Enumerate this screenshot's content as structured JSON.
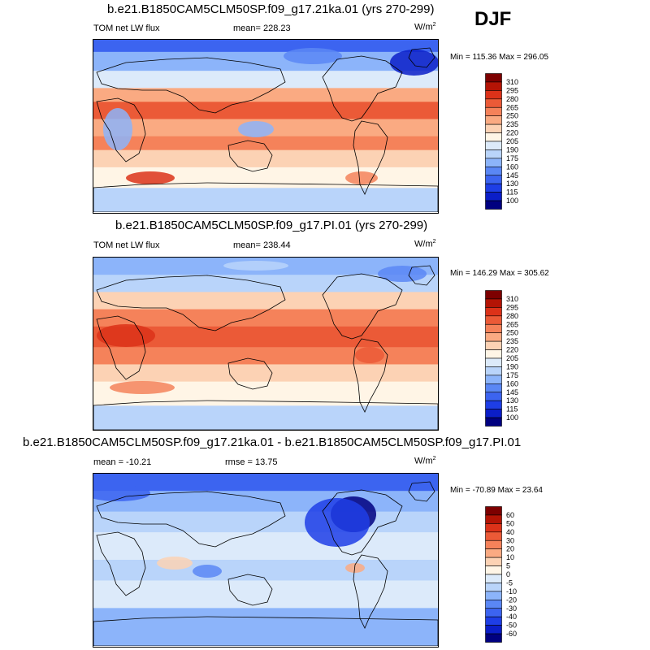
{
  "season": "DJF",
  "colors": {
    "lw_scale": [
      "#000080",
      "#0b1ec8",
      "#1e3ee6",
      "#3c64f0",
      "#5a87f5",
      "#8cb4fa",
      "#b9d4fa",
      "#dceafa",
      "#fff5e6",
      "#fcd2b4",
      "#faaa82",
      "#f5825a",
      "#eb5a37",
      "#dc3219",
      "#b41405",
      "#7d0000"
    ],
    "diff_scale": [
      "#000080",
      "#0b1ec8",
      "#1e3ee6",
      "#3c64f0",
      "#5a87f5",
      "#8cb4fa",
      "#b9d4fa",
      "#dceafa",
      "#fff5e6",
      "#fcd2b4",
      "#faaa82",
      "#f5825a",
      "#eb5a37",
      "#dc3219",
      "#b41405",
      "#7d0000"
    ]
  },
  "panels": [
    {
      "title": "b.e21.B1850CAM5CLM50SP.f09_g17.21ka.01 (yrs 270-299)",
      "variable": "TOM net LW flux",
      "mean": "mean= 228.23",
      "units_base": "W/m",
      "units_exp": "2",
      "minmax": "Min = 115.36 Max = 296.05",
      "levels": [
        "310",
        "295",
        "280",
        "265",
        "250",
        "235",
        "220",
        "205",
        "190",
        "175",
        "160",
        "145",
        "130",
        "115",
        "100"
      ]
    },
    {
      "title": "b.e21.B1850CAM5CLM50SP.f09_g17.PI.01 (yrs 270-299)",
      "variable": "TOM net LW flux",
      "mean": "mean= 238.44",
      "units_base": "W/m",
      "units_exp": "2",
      "minmax": "Min = 146.29 Max = 305.62",
      "levels": [
        "310",
        "295",
        "280",
        "265",
        "250",
        "235",
        "220",
        "205",
        "190",
        "175",
        "160",
        "145",
        "130",
        "115",
        "100"
      ]
    },
    {
      "title": "b.e21.B1850CAM5CLM50SP.f09_g17.21ka.01 - b.e21.B1850CAM5CLM50SP.f09_g17.PI.01",
      "variable": "mean = -10.21",
      "mean": "rmse =  13.75",
      "units_base": "W/m",
      "units_exp": "2",
      "minmax": "Min = -70.89 Max =  23.64",
      "levels": [
        "60",
        "50",
        "40",
        "30",
        "20",
        "10",
        "5",
        "0",
        "-5",
        "-10",
        "-20",
        "-30",
        "-40",
        "-50",
        "-60"
      ]
    }
  ],
  "chart_data": [
    {
      "type": "heatmap",
      "title": "b.e21.B1850CAM5CLM50SP.f09_g17.21ka.01 (yrs 270-299)",
      "variable": "TOM net LW flux",
      "units": "W/m2",
      "mean": 228.23,
      "min": 115.36,
      "max": 296.05,
      "contour_levels": [
        100,
        115,
        130,
        145,
        160,
        175,
        190,
        205,
        220,
        235,
        250,
        265,
        280,
        295,
        310
      ]
    },
    {
      "type": "heatmap",
      "title": "b.e21.B1850CAM5CLM50SP.f09_g17.PI.01 (yrs 270-299)",
      "variable": "TOM net LW flux",
      "units": "W/m2",
      "mean": 238.44,
      "min": 146.29,
      "max": 305.62,
      "contour_levels": [
        100,
        115,
        130,
        145,
        160,
        175,
        190,
        205,
        220,
        235,
        250,
        265,
        280,
        295,
        310
      ]
    },
    {
      "type": "heatmap",
      "title": "b.e21.B1850CAM5CLM50SP.f09_g17.21ka.01 - b.e21.B1850CAM5CLM50SP.f09_g17.PI.01",
      "units": "W/m2",
      "mean": -10.21,
      "rmse": 13.75,
      "min": -70.89,
      "max": 23.64,
      "contour_levels": [
        -60,
        -50,
        -40,
        -30,
        -20,
        -10,
        -5,
        0,
        5,
        10,
        20,
        30,
        40,
        50,
        60
      ]
    }
  ]
}
